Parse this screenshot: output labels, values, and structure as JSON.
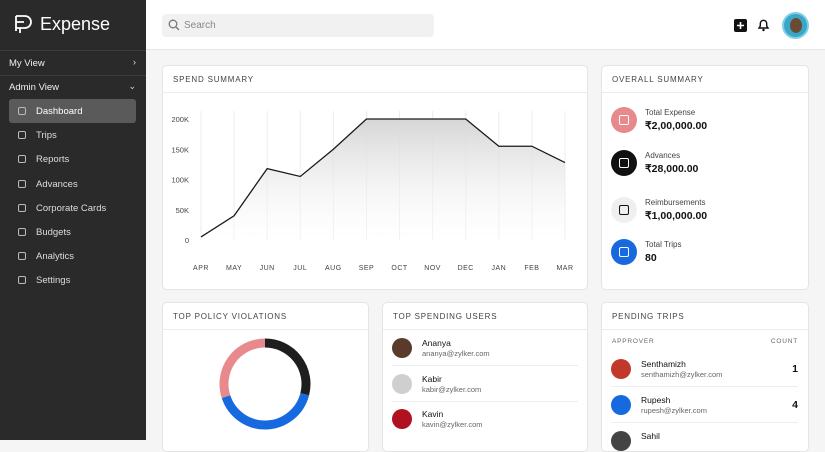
{
  "sidebar": {
    "brand": "Expense",
    "sections": [
      "My View",
      "Admin View"
    ],
    "menu": [
      "Dashboard",
      "Trips",
      "Reports",
      "Advances",
      "Corporate Cards",
      "Budgets",
      "Analytics",
      "Settings"
    ]
  },
  "search": {
    "placeholder": "Search"
  },
  "chart_data": [
    {
      "type": "line",
      "title": "SPEND SUMMARY",
      "categories": [
        "APR",
        "MAY",
        "JUN",
        "JUL",
        "AUG",
        "SEP",
        "OCT",
        "NOV",
        "DEC",
        "JAN",
        "FEB",
        "MAR"
      ],
      "values": [
        5000,
        40000,
        118000,
        105000,
        150000,
        200000,
        200000,
        200000,
        200000,
        155000,
        155000,
        128000
      ],
      "color": "#1a1a1a",
      "ylim": [
        0,
        200000
      ],
      "yticks": [
        0,
        {
          "value": 50000,
          "label": "50K"
        },
        {
          "value": 100000,
          "label": "100K"
        },
        {
          "value": 150000,
          "label": "150K"
        },
        {
          "value": 200000,
          "label": "200K"
        }
      ],
      "xgrid": true
    },
    {
      "type": "pie",
      "title": "TOP POLICY VIOLATIONS",
      "values": [
        29,
        41,
        30
      ],
      "colors": [
        "#1e1e1e",
        "#1769e0",
        "#e8898d"
      ]
    }
  ],
  "overall_summary": {
    "title": "OVERALL SUMMARY",
    "items": [
      {
        "label": "Total Expense",
        "value": "₹2,00,000.00"
      },
      {
        "label": "Advances",
        "value": "₹28,000.00"
      },
      {
        "label": "Reimbursements",
        "value": "₹1,00,000.00"
      },
      {
        "label": "Total Trips",
        "value": "80"
      }
    ]
  },
  "top_spending_users": {
    "title": "TOP SPENDING USERS",
    "users": [
      {
        "name": "Ananya",
        "email": "ananya@zylker.com"
      },
      {
        "name": "Kabir",
        "email": "kabir@zylker.com"
      },
      {
        "name": "Kavin",
        "email": "kavin@zylker.com"
      }
    ]
  },
  "pending_trips": {
    "title": "PENDING TRIPS",
    "columns": [
      "APPROVER",
      "COUNT"
    ],
    "rows": [
      {
        "name": "Senthamizh",
        "email": "senthamizh@zylker.com",
        "count": "1"
      },
      {
        "name": "Rupesh",
        "email": "rupesh@zylker.com",
        "count": "4"
      },
      {
        "name": "Sahil"
      }
    ]
  }
}
